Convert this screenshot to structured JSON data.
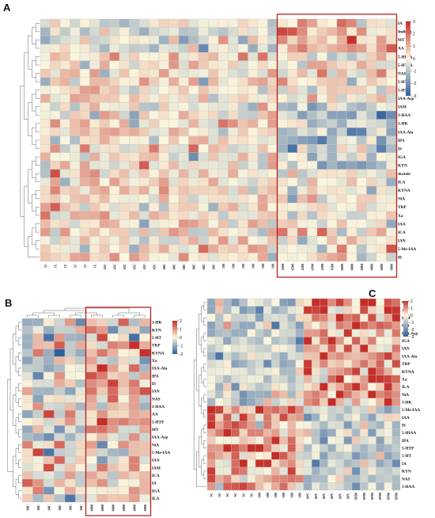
{
  "colors": {
    "low": "#2f5f9e",
    "mid": "#fbf6dd",
    "high": "#c62d27",
    "highlight_box": "#b3221e",
    "grid_line": "#c9c9c9",
    "dendrogram": "#666666"
  },
  "chart_data": [
    {
      "type": "heatmap",
      "panel": "A",
      "title": "",
      "rows": [
        "IA",
        "Indican",
        "MT",
        "AA",
        "5-HIAA",
        "5-HTOL",
        "NAS",
        "5-HTP",
        "5-HT",
        "IAA-Asp",
        "IAM",
        "3-HAA",
        "3-HK",
        "IAA-Ala",
        "IPA",
        "IS",
        "IGA",
        "KYN",
        "skatole",
        "ILA",
        "KYNA",
        "NiA",
        "TRP",
        "Xa",
        "IAA",
        "ICA",
        "IAN",
        "5-Me-IAA",
        "IE"
      ],
      "columns": [
        "1C",
        "1C",
        "1C",
        "1C",
        "1C",
        "1C",
        "45C",
        "45C",
        "45C",
        "45C",
        "45C",
        "45C",
        "60C",
        "60C",
        "60C",
        "60C",
        "60C",
        "60C",
        "1M",
        "1M",
        "1M",
        "1M",
        "1M",
        "1M",
        "45M",
        "45M",
        "45M",
        "45M",
        "45M",
        "45M",
        "60M",
        "60M",
        "60M",
        "60M",
        "60M",
        "60M"
      ],
      "color_scale": {
        "min": -3,
        "max": 3,
        "ticks": [
          "3",
          "2",
          "1",
          "0",
          "-1",
          "-2",
          "-3"
        ],
        "legend_position": "right"
      },
      "highlight": {
        "first_column": 24,
        "last_column": 35
      },
      "seed": 11
    },
    {
      "type": "heatmap",
      "panel": "B",
      "title": "",
      "rows": [
        "3-HK",
        "KYN",
        "5-HT",
        "TRP",
        "KYNA",
        "Xa",
        "IAA-Ala",
        "IPA",
        "IS",
        "IAN",
        "NAS",
        "3-HAA",
        "AA",
        "5-HTP",
        "MT",
        "IAA-Asp",
        "NiA",
        "5-Me-IAA",
        "IAA",
        "IAM",
        "ICA",
        "IA",
        "IGA",
        "ILA"
      ],
      "columns": [
        "60C",
        "60C",
        "60C",
        "60C",
        "60C",
        "60C",
        "60M",
        "60M",
        "60M",
        "60M",
        "60M",
        "60M"
      ],
      "color_scale": {
        "min": -2,
        "max": 2,
        "ticks": [
          "2",
          "1",
          "0",
          "-1",
          "-2"
        ],
        "legend_position": "right"
      },
      "highlight": {
        "first_column": 6,
        "last_column": 11
      },
      "seed": 23
    },
    {
      "type": "heatmap",
      "panel": "C",
      "title": "",
      "rows": [
        "MT",
        "AA",
        "IAM",
        "ICA",
        "IAA-Asp",
        "IGA",
        "IAN",
        "IAA-Ala",
        "TRP",
        "KYNA",
        "Xa",
        "ILA",
        "NiA",
        "3-HK",
        "5-Me-IAA",
        "IAA",
        "IS",
        "5-HIAA",
        "IPA",
        "5-HTP",
        "5-HT",
        "IA",
        "KYN",
        "NAS",
        "3-HAA"
      ],
      "columns": [
        "SC",
        "SC",
        "SC",
        "SC",
        "SC",
        "SC",
        "SM",
        "SM",
        "SM",
        "SM",
        "SM",
        "SM",
        "SPC",
        "SPC",
        "SPC",
        "SPC",
        "SPC",
        "SPC",
        "SPM",
        "SPM",
        "SPM",
        "SPM",
        "SPM",
        "SPM"
      ],
      "color_scale": {
        "min": -3,
        "max": 2,
        "ticks": [
          "2",
          "1",
          "0",
          "-1",
          "-2",
          "-3"
        ],
        "legend_position": "right"
      },
      "highlight": null,
      "seed": 37
    }
  ]
}
